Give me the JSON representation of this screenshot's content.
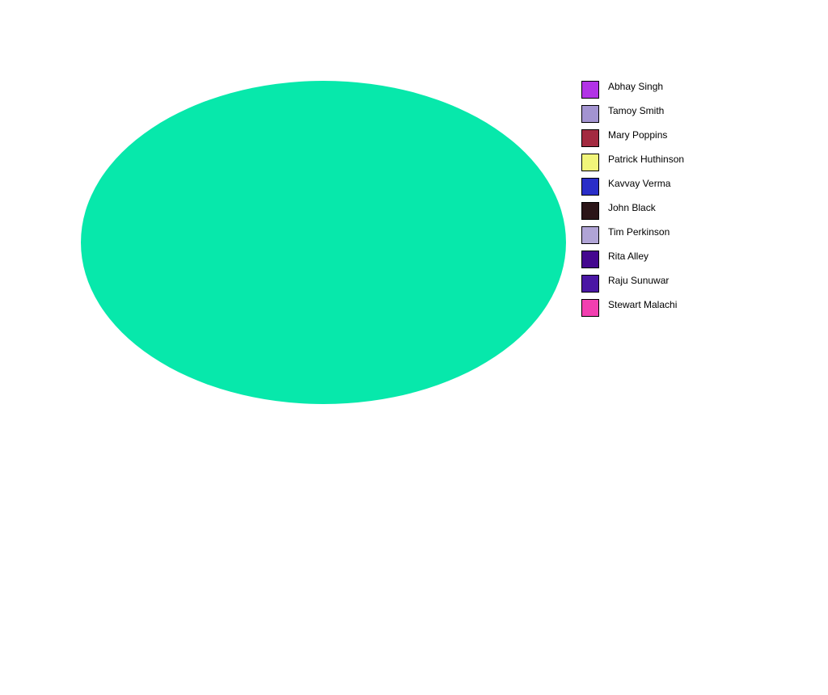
{
  "chart_data": {
    "type": "pie",
    "title": "",
    "legend_position": "right",
    "slices": [
      {
        "label": "Abhay Singh",
        "value": 0,
        "color": "#b233e6"
      },
      {
        "label": "Tamoy Smith",
        "value": 0,
        "color": "#a394d1"
      },
      {
        "label": "Mary Poppins",
        "value": 0,
        "color": "#a32a40"
      },
      {
        "label": "Patrick Huthinson",
        "value": 0,
        "color": "#f1f57a"
      },
      {
        "label": "Kavvay Verma",
        "value": 0,
        "color": "#2a2ec8"
      },
      {
        "label": "John Black",
        "value": 0,
        "color": "#2b1518"
      },
      {
        "label": "Tim Perkinson",
        "value": 0,
        "color": "#b0a4d6"
      },
      {
        "label": "Rita Alley",
        "value": 0,
        "color": "#44088f"
      },
      {
        "label": "Raju Sunuwar",
        "value": 0,
        "color": "#4a17a4"
      },
      {
        "label": "Stewart Malachi",
        "value": 100,
        "color": "#f23fb0"
      }
    ],
    "visible_fill_color": "#07e8ab"
  }
}
